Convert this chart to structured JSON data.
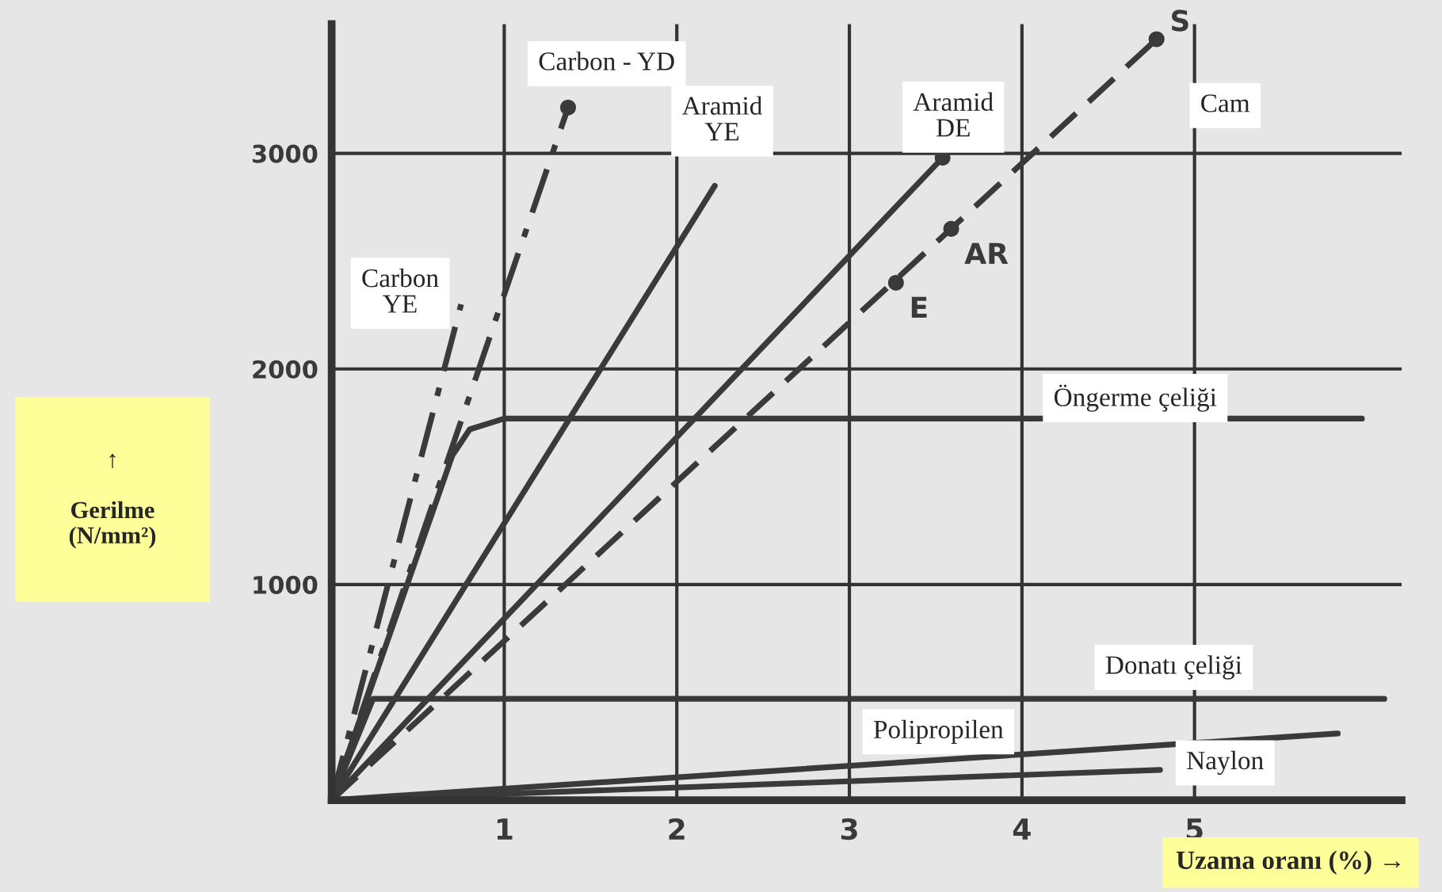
{
  "chart_data": {
    "type": "line",
    "xlabel": "Uzama oranı (%) →",
    "ylabel": "↑\n\nGerilme\n(N/mm²)",
    "xlim": [
      0,
      6.2
    ],
    "ylim": [
      0,
      3600
    ],
    "xticks": [
      1,
      2,
      3,
      4,
      5
    ],
    "yticks": [
      1000,
      2000,
      3000
    ],
    "grid": true,
    "series": [
      {
        "name": "Carbon - YD",
        "color": "#3a3a3a",
        "line_style": "dashdot",
        "x": [
          0,
          1.37
        ],
        "values": [
          0,
          3213
        ]
      },
      {
        "name": "Carbon\nYE",
        "color": "#3a3a3a",
        "line_style": "dashdot",
        "x": [
          0,
          0.75
        ],
        "values": [
          0,
          2300
        ]
      },
      {
        "name": "Aramid\nYE",
        "color": "#3a3a3a",
        "line_style": "solid",
        "x": [
          0,
          2.22
        ],
        "values": [
          0,
          2850
        ]
      },
      {
        "name": "Aramid\nDE",
        "color": "#3a3a3a",
        "line_style": "solid",
        "x": [
          0,
          3.54
        ],
        "values": [
          0,
          2980
        ]
      },
      {
        "name": "Cam",
        "color": "#3a3a3a",
        "line_style": "dashed",
        "x": [
          0,
          4.78
        ],
        "values": [
          0,
          3530
        ]
      },
      {
        "name": "Öngerme çeliği",
        "color": "#3a3a3a",
        "line_style": "solid",
        "x": [
          0,
          0.7,
          0.8,
          1.0,
          5.97
        ],
        "values": [
          0,
          1600,
          1720,
          1770,
          1770
        ]
      },
      {
        "name": "Donatı çeliği",
        "color": "#3a3a3a",
        "line_style": "solid",
        "x": [
          0,
          0.24,
          6.1
        ],
        "values": [
          0,
          470,
          470
        ]
      },
      {
        "name": "Polipropilen",
        "color": "#3a3a3a",
        "line_style": "solid",
        "x": [
          0,
          5.83
        ],
        "values": [
          0,
          309
        ]
      },
      {
        "name": "Naylon",
        "color": "#3a3a3a",
        "line_style": "solid",
        "x": [
          0,
          4.8
        ],
        "values": [
          0,
          140
        ]
      },
      {
        "type": "scatter",
        "color": "#3a3a3a",
        "marker": "circle",
        "x": [
          1.37,
          3.54,
          4.78,
          3.59,
          3.27
        ],
        "values": [
          3213,
          2980,
          3530,
          2650,
          2400
        ]
      }
    ],
    "annotations": [
      {
        "text": "S",
        "x": 4.78,
        "y": 3530
      },
      {
        "text": "AR",
        "x": 3.59,
        "y": 2650
      },
      {
        "text": "E",
        "x": 3.27,
        "y": 2400
      }
    ]
  }
}
